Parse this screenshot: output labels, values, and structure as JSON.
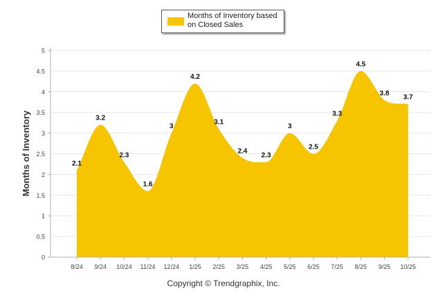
{
  "chart_data": {
    "type": "area",
    "categories": [
      "8/24",
      "9/24",
      "10/24",
      "11/24",
      "12/24",
      "1/25",
      "2/25",
      "3/25",
      "4/25",
      "5/25",
      "6/25",
      "7/25",
      "8/25",
      "9/25",
      "10/25"
    ],
    "series": [
      {
        "name": "Months of Inventory based on Closed Sales",
        "values": [
          2.1,
          3.2,
          2.3,
          1.6,
          3,
          4.2,
          3.1,
          2.4,
          2.3,
          3,
          2.5,
          3.3,
          4.5,
          3.8,
          3.7
        ]
      }
    ],
    "data_labels": [
      "2.1",
      "3.2",
      "2.3",
      "1.6",
      "3",
      "4.2",
      "3.1",
      "2.4",
      "2.3",
      "3",
      "2.5",
      "3.3",
      "4.5",
      "3.8",
      "3.7"
    ],
    "ylabel": "Months of Inventory",
    "xlabel": "",
    "ylim": [
      0,
      5
    ],
    "yticks": [
      "0",
      "0.5",
      "1",
      "1.5",
      "2",
      "2.5",
      "3",
      "3.5",
      "4",
      "4.5",
      "5"
    ],
    "grid": true,
    "legend": {
      "label": "Months of Inventory based on Closed Sales",
      "position": "top-center"
    },
    "colors": {
      "fill": "#F7C400",
      "grid": "#e6e6e6",
      "axis": "#b0b0b0",
      "text": "#444444"
    }
  },
  "footer": {
    "copyright": "Copyright © Trendgraphix, Inc."
  }
}
